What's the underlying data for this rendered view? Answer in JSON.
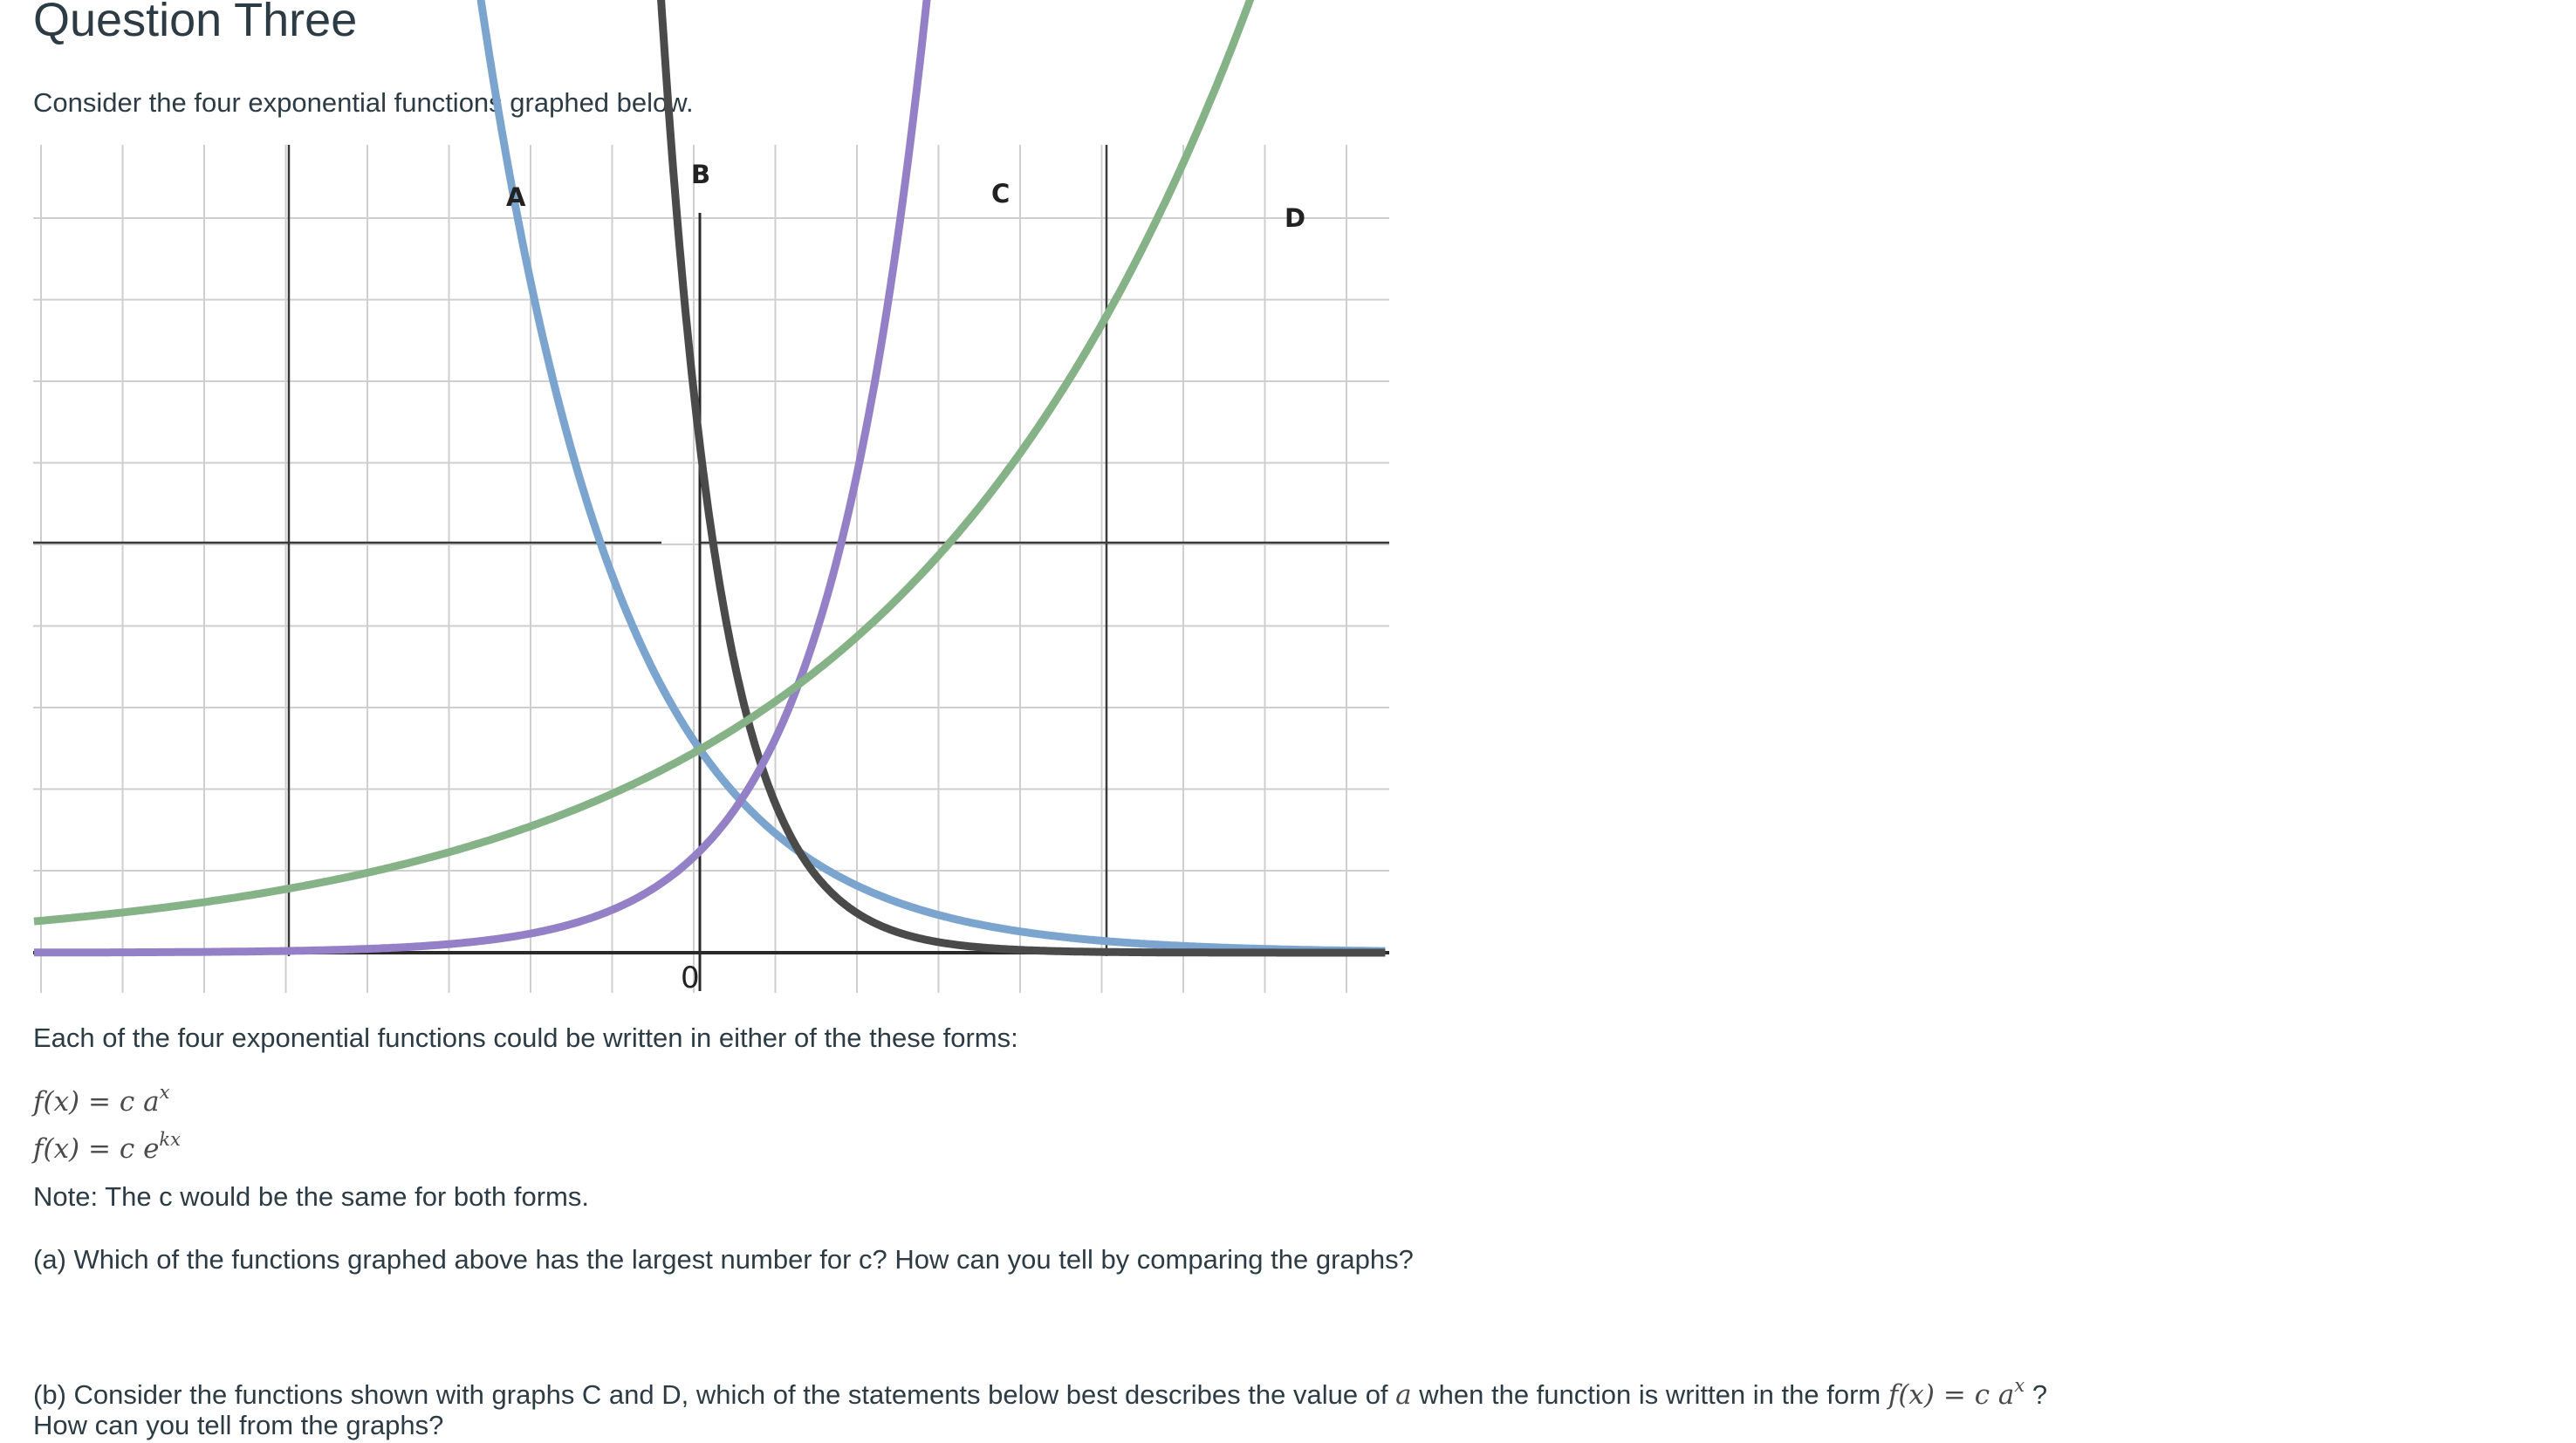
{
  "heading": "Question Three",
  "intro": "Consider the four exponential functions graphed below.",
  "chart_data": {
    "type": "line",
    "title": "",
    "xlabel": "",
    "ylabel": "",
    "grid": true,
    "xlim": [
      -2.4,
      2.1
    ],
    "ylim": [
      -0.12,
      2.5
    ],
    "origin_label": "0",
    "series": [
      {
        "name": "A",
        "color": "#7ba4cf",
        "c": 0.5,
        "a": 0.1,
        "x_start": -0.7
      },
      {
        "name": "B",
        "color": "#4a4a4a",
        "c": 1.25,
        "a": 0.005,
        "x_start": -0.18
      },
      {
        "name": "C",
        "color": "#9480c6",
        "c": 0.25,
        "a": 25,
        "x_start": -2.4
      },
      {
        "name": "D",
        "color": "#86b287",
        "c": 0.5,
        "a": 2.5,
        "x_start": -2.4
      }
    ]
  },
  "forms_intro": "Each of the four exponential functions could be written in either of the these forms:",
  "form1": {
    "lhs": "f(x)",
    "eq": "=",
    "rhs": "c a",
    "exp": "x"
  },
  "form2": {
    "lhs": "f(x)",
    "eq": "=",
    "rhs": "c e",
    "exp": "kx"
  },
  "note": "Note:  The c would be the same for both forms.",
  "part_a": "(a)  Which of the functions graphed above has the largest number for c?  How can you tell by comparing the graphs?",
  "part_b": {
    "prefix": "(b)  Consider the functions shown with graphs C and D, which of the statements below best describes the value of ",
    "var": "a",
    "middle": " when the function is written in the form ",
    "form_lhs": "f(x)",
    "form_eq": "=",
    "form_rhs": "c a",
    "form_exp": "x",
    "suffix": " ?",
    "line2": "How can you tell from the graphs?"
  }
}
